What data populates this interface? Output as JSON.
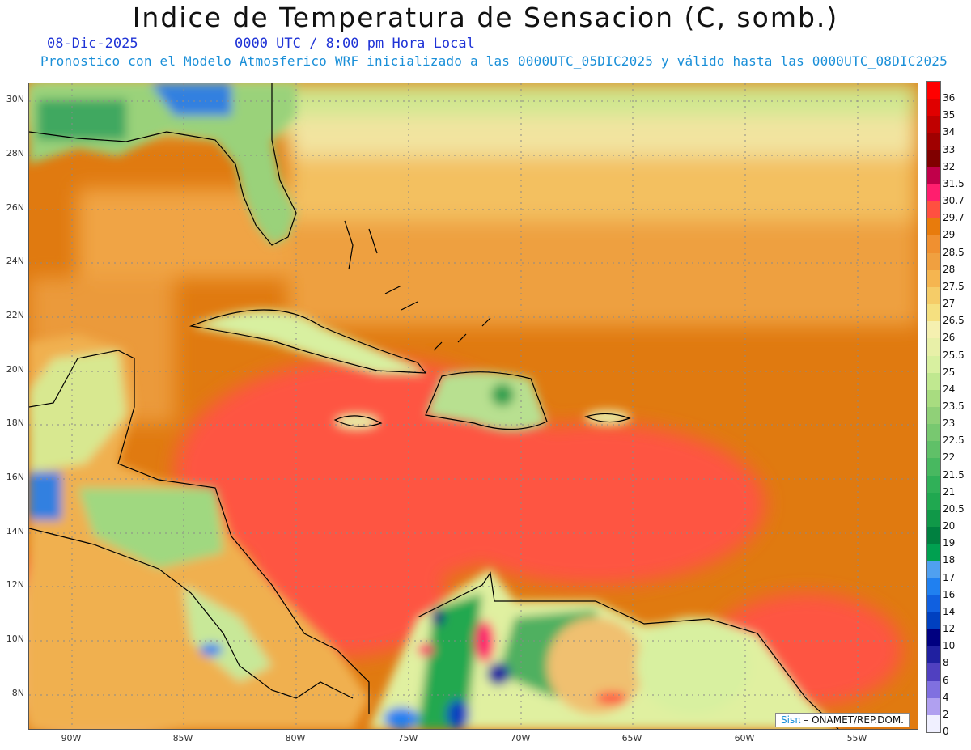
{
  "header": {
    "title": "Indice de Temperatura de Sensacion (C, somb.)",
    "date": "08-Dic-2025",
    "time": "0000 UTC / 8:00 pm Hora Local",
    "model_info": "Pronostico con el Modelo Atmosferico WRF inicializado a las 0000UTC_05DIC2025 y válido hasta las  0000UTC_08DIC2025"
  },
  "map": {
    "lat_labels": [
      "30N",
      "28N",
      "26N",
      "24N",
      "22N",
      "20N",
      "18N",
      "16N",
      "14N",
      "12N",
      "10N",
      "8N"
    ],
    "lon_labels": [
      "90W",
      "85W",
      "80W",
      "75W",
      "70W",
      "65W",
      "60W",
      "55W"
    ],
    "credit_sis": "Sisπ",
    "credit_rest": "– ONAMET/REP.DOM."
  },
  "colorbar": {
    "labels": [
      "36",
      "35",
      "34",
      "33",
      "32",
      "31.5",
      "30.7",
      "29.7",
      "29",
      "28.5",
      "28",
      "27.5",
      "27",
      "26.5",
      "26",
      "25.5",
      "25",
      "24",
      "23.5",
      "23",
      "22.5",
      "22",
      "21.5",
      "21",
      "20.5",
      "20",
      "19",
      "18",
      "17",
      "16",
      "14",
      "12",
      "10",
      "8",
      "6",
      "4",
      "2",
      "0"
    ],
    "colors": [
      "#ff0000",
      "#e00000",
      "#c00000",
      "#a00000",
      "#800000",
      "#c0004a",
      "#ff1e6e",
      "#ff5040",
      "#e87b0c",
      "#f09030",
      "#f0a040",
      "#f5b550",
      "#f5cc68",
      "#f5e080",
      "#f5f0b0",
      "#e8f0a8",
      "#d8f0a0",
      "#c0e890",
      "#a8dc80",
      "#90d078",
      "#78c870",
      "#60c068",
      "#48b860",
      "#30b058",
      "#20a850",
      "#109848",
      "#008040",
      "#00a050",
      "#50a0f0",
      "#2080f0",
      "#1060e0",
      "#0040c0",
      "#000080",
      "#2020a0",
      "#5040c0",
      "#8070e0",
      "#b0a0f0",
      "#f0f0ff"
    ]
  }
}
